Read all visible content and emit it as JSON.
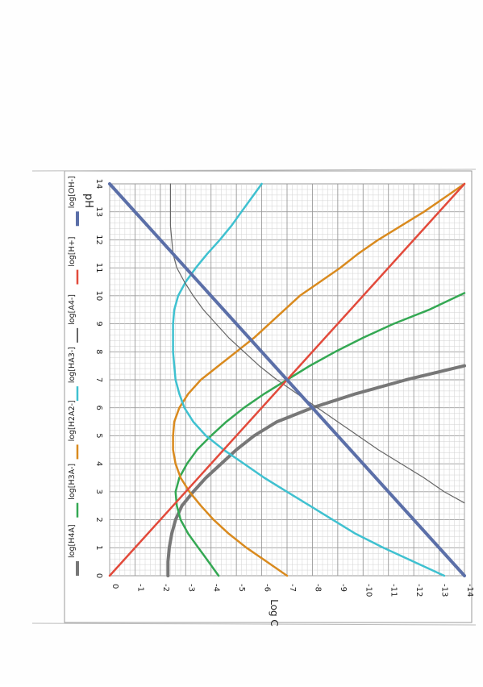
{
  "chart_data": {
    "type": "line",
    "xlabel": "pH",
    "ylabel": "Log C",
    "xlim": [
      0,
      14
    ],
    "ylim": [
      0,
      -14
    ],
    "x_ticks": [
      "0",
      "1",
      "2",
      "3",
      "4",
      "5",
      "6",
      "7",
      "8",
      "9",
      "10",
      "11",
      "12",
      "13",
      "14"
    ],
    "y_ticks": [
      "0",
      "-1",
      "-2",
      "-3",
      "-4",
      "-5",
      "-6",
      "-7",
      "-8",
      "-9",
      "-10",
      "-11",
      "-12",
      "-13",
      "-14"
    ],
    "grid": true,
    "legend_position": "left",
    "orientation_note": "page printed rotated 90 degrees",
    "series": [
      {
        "name": "log[H4A]",
        "color": "#777777",
        "width": 4,
        "x": [
          0,
          0.5,
          1,
          1.5,
          2,
          2.5,
          3,
          3.5,
          4,
          4.5,
          5,
          5.5,
          6,
          6.5,
          7,
          7.5
        ],
        "y": [
          -2.3,
          -2.3,
          -2.35,
          -2.45,
          -2.6,
          -2.85,
          -3.3,
          -3.8,
          -4.4,
          -5.0,
          -5.7,
          -6.6,
          -8.0,
          -9.7,
          -11.7,
          -14
        ]
      },
      {
        "name": "log[H3A-]",
        "color": "#34a853",
        "width": 2.5,
        "x": [
          0,
          0.5,
          1,
          1.5,
          2,
          2.5,
          3,
          3.5,
          4,
          4.5,
          5,
          5.5,
          6,
          6.5,
          7,
          7.5,
          8,
          8.5,
          9,
          9.5,
          10.1
        ],
        "y": [
          -4.3,
          -3.9,
          -3.5,
          -3.1,
          -2.8,
          -2.65,
          -2.6,
          -2.75,
          -3.05,
          -3.45,
          -4.0,
          -4.6,
          -5.3,
          -6.1,
          -7.0,
          -7.9,
          -8.9,
          -10.0,
          -11.2,
          -12.6,
          -14
        ]
      },
      {
        "name": "log[H2A2-]",
        "color": "#d98a1e",
        "width": 2.5,
        "x": [
          0,
          0.5,
          1,
          1.5,
          2,
          2.5,
          3,
          3.5,
          4,
          4.5,
          5,
          5.5,
          6,
          6.5,
          7,
          7.5,
          8,
          8.5,
          9,
          9.5,
          10,
          10.5,
          11,
          11.5,
          12,
          12.5,
          13,
          13.5,
          14
        ],
        "y": [
          -7.0,
          -6.2,
          -5.4,
          -4.7,
          -4.1,
          -3.6,
          -3.15,
          -2.8,
          -2.6,
          -2.5,
          -2.5,
          -2.55,
          -2.75,
          -3.1,
          -3.6,
          -4.3,
          -5.0,
          -5.7,
          -6.3,
          -6.9,
          -7.5,
          -8.3,
          -9.1,
          -9.8,
          -10.6,
          -11.5,
          -12.4,
          -13.2,
          -14
        ]
      },
      {
        "name": "log[HA3-]",
        "color": "#3fc1d0",
        "width": 2.5,
        "x": [
          0,
          0.5,
          1,
          1.5,
          2,
          2.5,
          3,
          3.5,
          4,
          4.5,
          5,
          5.5,
          6,
          6.5,
          7,
          7.5,
          8,
          8.5,
          9,
          9.5,
          10,
          10.5,
          11,
          11.5,
          12,
          12.5,
          13,
          13.5,
          14
        ],
        "y": [
          -13.2,
          -12.0,
          -10.8,
          -9.7,
          -8.8,
          -7.9,
          -7.0,
          -6.1,
          -5.3,
          -4.5,
          -3.8,
          -3.3,
          -2.95,
          -2.75,
          -2.6,
          -2.55,
          -2.5,
          -2.5,
          -2.5,
          -2.55,
          -2.7,
          -3.0,
          -3.4,
          -3.85,
          -4.35,
          -4.8,
          -5.2,
          -5.6,
          -6.0
        ]
      },
      {
        "name": "log[A4-]",
        "color": "#666666",
        "width": 1.2,
        "x": [
          2.6,
          3,
          3.5,
          4,
          4.5,
          5,
          5.5,
          6,
          6.5,
          7,
          7.5,
          8,
          8.5,
          9,
          9.5,
          10,
          10.5,
          11,
          11.5,
          12,
          12.5,
          13,
          13.5,
          14
        ],
        "y": [
          -14,
          -13.2,
          -12.4,
          -11.5,
          -10.6,
          -9.8,
          -9.0,
          -8.2,
          -7.4,
          -6.6,
          -5.9,
          -5.3,
          -4.7,
          -4.2,
          -3.7,
          -3.3,
          -2.95,
          -2.65,
          -2.5,
          -2.45,
          -2.4,
          -2.4,
          -2.4,
          -2.4
        ]
      },
      {
        "name": "log[H+]",
        "color": "#e24a3b",
        "width": 2.5,
        "x": [
          0,
          14
        ],
        "y": [
          0,
          -14
        ]
      },
      {
        "name": "log[OH-]",
        "color": "#5b6fa8",
        "width": 4,
        "x": [
          0,
          14
        ],
        "y": [
          -14,
          0
        ]
      }
    ]
  }
}
